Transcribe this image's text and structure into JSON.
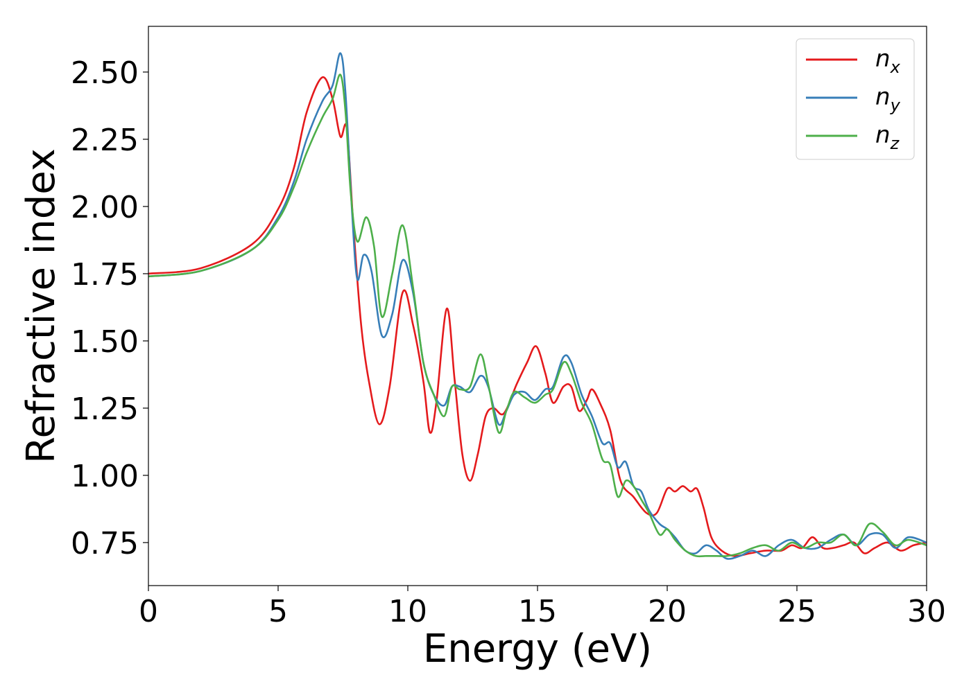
{
  "chart_data": {
    "type": "line",
    "xlabel": "Energy (eV)",
    "ylabel": "Refractive index",
    "xlim": [
      0,
      30
    ],
    "ylim": [
      0.59,
      2.67
    ],
    "xticks": [
      0,
      5,
      10,
      15,
      20,
      25,
      30
    ],
    "xtick_labels": [
      "0",
      "5",
      "10",
      "15",
      "20",
      "25",
      "30"
    ],
    "yticks": [
      0.75,
      1.0,
      1.25,
      1.5,
      1.75,
      2.0,
      2.25,
      2.5
    ],
    "ytick_labels": [
      "0.75",
      "1.00",
      "1.25",
      "1.50",
      "1.75",
      "2.00",
      "2.25",
      "2.50"
    ],
    "grid": false,
    "legend_position": "top-right",
    "series": [
      {
        "name": "n_x",
        "label_base": "n",
        "label_sub": "x",
        "color": "#e41a1c",
        "x": [
          0,
          2,
          4,
          5,
          5.6,
          6.1,
          6.7,
          7.1,
          7.4,
          7.65,
          7.9,
          8.2,
          8.5,
          8.9,
          9.3,
          9.8,
          10.2,
          10.6,
          10.85,
          11.1,
          11.5,
          11.8,
          12.1,
          12.4,
          12.7,
          13.0,
          13.3,
          13.7,
          14.2,
          14.6,
          14.95,
          15.3,
          15.6,
          16.0,
          16.3,
          16.6,
          16.9,
          17.1,
          17.4,
          17.8,
          18.2,
          18.7,
          19.2,
          19.6,
          20.0,
          20.3,
          20.6,
          20.9,
          21.15,
          21.4,
          21.7,
          22.1,
          22.6,
          23.2,
          23.8,
          24.4,
          24.8,
          25.2,
          25.6,
          26.0,
          26.4,
          26.8,
          27.2,
          27.6,
          28.0,
          28.5,
          29.0,
          29.5,
          30.0
        ],
        "y": [
          1.75,
          1.77,
          1.86,
          1.99,
          2.14,
          2.35,
          2.48,
          2.4,
          2.26,
          2.29,
          1.93,
          1.56,
          1.35,
          1.19,
          1.33,
          1.68,
          1.56,
          1.35,
          1.16,
          1.27,
          1.62,
          1.36,
          1.08,
          0.98,
          1.08,
          1.22,
          1.25,
          1.23,
          1.34,
          1.42,
          1.48,
          1.38,
          1.27,
          1.33,
          1.33,
          1.24,
          1.28,
          1.32,
          1.27,
          1.17,
          0.98,
          0.92,
          0.86,
          0.86,
          0.95,
          0.94,
          0.96,
          0.94,
          0.95,
          0.88,
          0.77,
          0.72,
          0.7,
          0.71,
          0.72,
          0.72,
          0.74,
          0.73,
          0.77,
          0.73,
          0.73,
          0.74,
          0.75,
          0.71,
          0.73,
          0.75,
          0.72,
          0.74,
          0.75
        ]
      },
      {
        "name": "n_y",
        "label_base": "n",
        "label_sub": "y",
        "color": "#377eb8",
        "x": [
          0,
          2,
          4,
          5,
          5.6,
          6.1,
          6.7,
          7.1,
          7.4,
          7.6,
          7.85,
          8.05,
          8.3,
          8.6,
          9.0,
          9.4,
          9.8,
          10.2,
          10.6,
          11.0,
          11.4,
          11.7,
          12.0,
          12.4,
          12.8,
          13.1,
          13.5,
          13.8,
          14.1,
          14.5,
          14.9,
          15.3,
          15.6,
          16.0,
          16.3,
          16.7,
          17.1,
          17.5,
          17.8,
          18.1,
          18.4,
          18.7,
          19.0,
          19.3,
          19.7,
          20.0,
          20.3,
          20.7,
          21.1,
          21.5,
          21.9,
          22.3,
          22.8,
          23.3,
          23.8,
          24.3,
          24.8,
          25.3,
          25.8,
          26.3,
          26.8,
          27.3,
          27.8,
          28.3,
          28.8,
          29.3,
          30.0
        ],
        "y": [
          1.74,
          1.76,
          1.84,
          1.96,
          2.09,
          2.25,
          2.39,
          2.45,
          2.57,
          2.42,
          1.98,
          1.73,
          1.82,
          1.76,
          1.52,
          1.6,
          1.8,
          1.68,
          1.42,
          1.3,
          1.26,
          1.33,
          1.33,
          1.31,
          1.37,
          1.33,
          1.19,
          1.24,
          1.3,
          1.31,
          1.28,
          1.32,
          1.33,
          1.44,
          1.42,
          1.3,
          1.22,
          1.12,
          1.12,
          1.03,
          1.05,
          0.96,
          0.94,
          0.87,
          0.82,
          0.8,
          0.77,
          0.72,
          0.71,
          0.74,
          0.72,
          0.69,
          0.7,
          0.72,
          0.7,
          0.74,
          0.76,
          0.73,
          0.73,
          0.76,
          0.78,
          0.74,
          0.78,
          0.78,
          0.73,
          0.77,
          0.75
        ]
      },
      {
        "name": "n_z",
        "label_base": "n",
        "label_sub": "z",
        "color": "#4daf4a",
        "x": [
          0,
          2,
          4,
          5,
          5.6,
          6.1,
          6.7,
          7.1,
          7.4,
          7.6,
          7.8,
          8.05,
          8.4,
          8.7,
          9.0,
          9.4,
          9.8,
          10.2,
          10.6,
          11.0,
          11.4,
          11.7,
          12.0,
          12.4,
          12.8,
          13.1,
          13.5,
          13.8,
          14.1,
          14.5,
          14.9,
          15.3,
          15.6,
          16.0,
          16.3,
          16.7,
          17.1,
          17.5,
          17.8,
          18.1,
          18.4,
          18.7,
          19.0,
          19.3,
          19.7,
          20.0,
          20.3,
          20.7,
          21.1,
          21.5,
          21.9,
          22.3,
          22.8,
          23.3,
          23.8,
          24.3,
          24.8,
          25.3,
          25.8,
          26.3,
          26.8,
          27.3,
          27.8,
          28.3,
          28.8,
          29.3,
          30.0
        ],
        "y": [
          1.74,
          1.76,
          1.84,
          1.95,
          2.07,
          2.2,
          2.33,
          2.4,
          2.49,
          2.35,
          2.05,
          1.87,
          1.96,
          1.85,
          1.59,
          1.75,
          1.93,
          1.7,
          1.42,
          1.3,
          1.22,
          1.33,
          1.32,
          1.33,
          1.45,
          1.34,
          1.16,
          1.24,
          1.31,
          1.29,
          1.27,
          1.3,
          1.32,
          1.42,
          1.38,
          1.27,
          1.19,
          1.06,
          1.04,
          0.92,
          0.98,
          0.96,
          0.91,
          0.86,
          0.78,
          0.8,
          0.76,
          0.72,
          0.7,
          0.7,
          0.7,
          0.7,
          0.71,
          0.73,
          0.74,
          0.72,
          0.75,
          0.73,
          0.75,
          0.75,
          0.78,
          0.74,
          0.82,
          0.79,
          0.74,
          0.76,
          0.74
        ]
      }
    ]
  }
}
